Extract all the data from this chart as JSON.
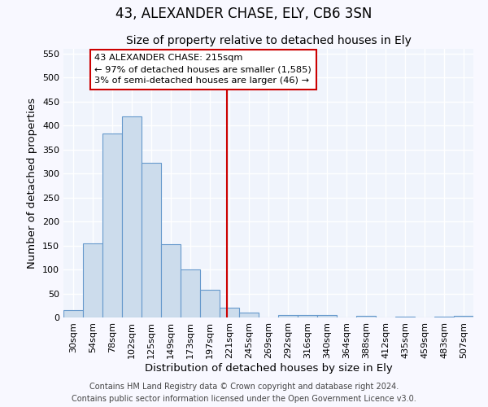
{
  "title": "43, ALEXANDER CHASE, ELY, CB6 3SN",
  "subtitle": "Size of property relative to detached houses in Ely",
  "xlabel": "Distribution of detached houses by size in Ely",
  "ylabel": "Number of detached properties",
  "bin_labels": [
    "30sqm",
    "54sqm",
    "78sqm",
    "102sqm",
    "125sqm",
    "149sqm",
    "173sqm",
    "197sqm",
    "221sqm",
    "245sqm",
    "269sqm",
    "292sqm",
    "316sqm",
    "340sqm",
    "364sqm",
    "388sqm",
    "412sqm",
    "435sqm",
    "459sqm",
    "483sqm",
    "507sqm"
  ],
  "bar_heights": [
    15,
    155,
    383,
    420,
    323,
    153,
    100,
    57,
    20,
    10,
    0,
    5,
    5,
    5,
    0,
    3,
    0,
    2,
    0,
    2,
    3
  ],
  "bar_color": "#ccdcec",
  "bar_edge_color": "#6699cc",
  "ylim": [
    0,
    560
  ],
  "yticks": [
    0,
    50,
    100,
    150,
    200,
    250,
    300,
    350,
    400,
    450,
    500,
    550
  ],
  "vline_x": 7.87,
  "vline_color": "#cc0000",
  "annotation_text": "43 ALEXANDER CHASE: 215sqm\n← 97% of detached houses are smaller (1,585)\n3% of semi-detached houses are larger (46) →",
  "annotation_box_color": "#ffffff",
  "annotation_box_edge": "#cc0000",
  "footer_line1": "Contains HM Land Registry data © Crown copyright and database right 2024.",
  "footer_line2": "Contains public sector information licensed under the Open Government Licence v3.0.",
  "background_color": "#f8f8ff",
  "plot_bg_color": "#f0f4fc",
  "grid_color": "#ffffff",
  "title_fontsize": 12,
  "subtitle_fontsize": 10,
  "tick_fontsize": 8,
  "label_fontsize": 9.5,
  "footer_fontsize": 7
}
